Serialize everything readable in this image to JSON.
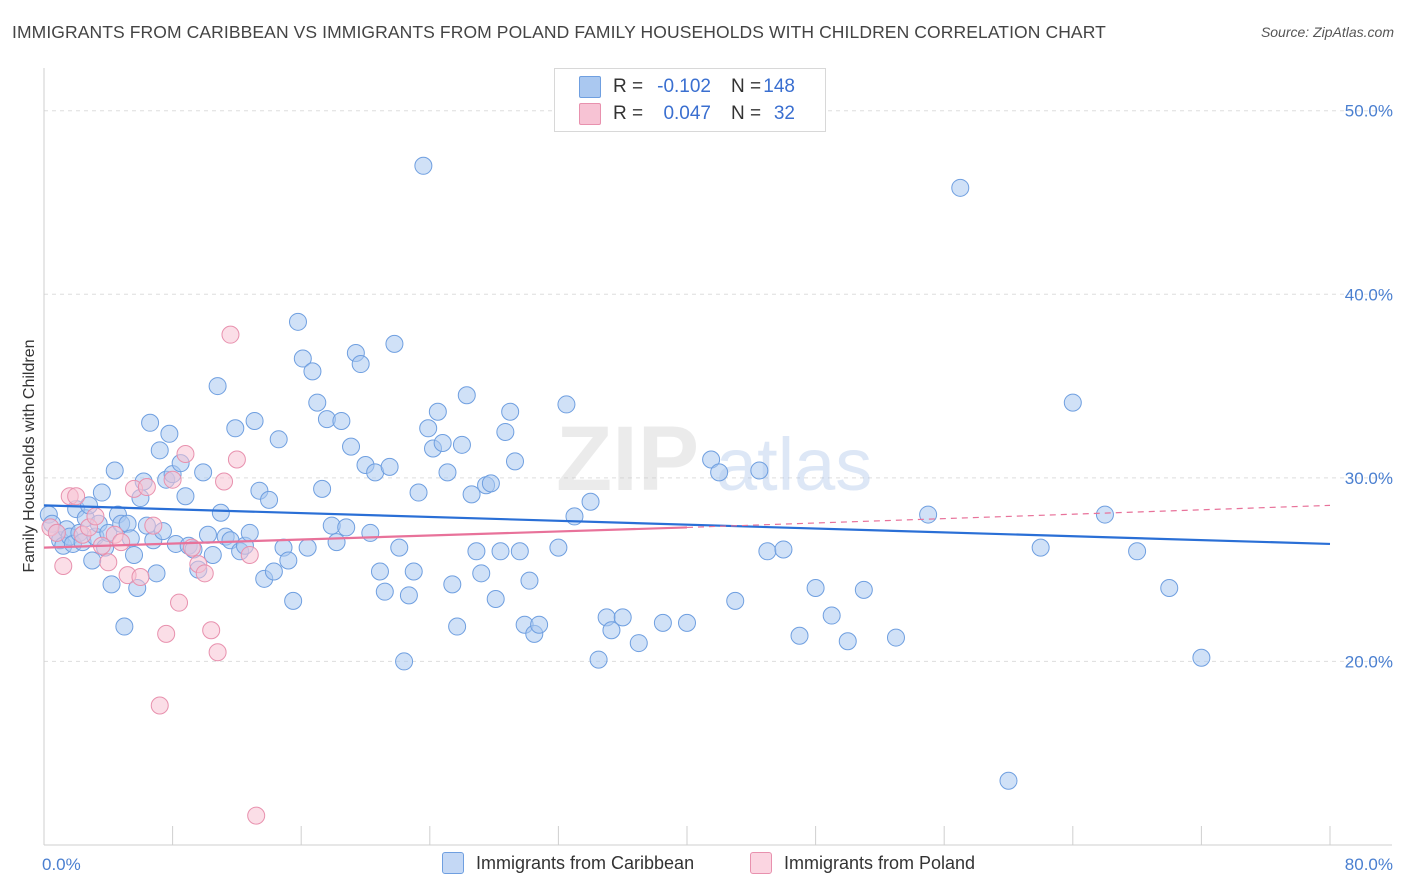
{
  "header": {
    "title": "IMMIGRANTS FROM CARIBBEAN VS IMMIGRANTS FROM POLAND FAMILY HOUSEHOLDS WITH CHILDREN CORRELATION CHART",
    "source": "Source: ZipAtlas.com"
  },
  "watermark": {
    "zip": "ZIP",
    "atlas": "atlas"
  },
  "legend": {
    "rows": [
      {
        "r_label": "R =",
        "r_value": "-0.102",
        "n_label": "N =",
        "n_value": "148"
      },
      {
        "r_label": "R =",
        "r_value": "0.047",
        "n_label": "N =",
        "n_value": "32"
      }
    ]
  },
  "colors": {
    "caribbean_fill": "#aac8f0",
    "caribbean_stroke": "#6f9fe0",
    "caribbean_line": "#2a6fd6",
    "poland_fill": "#f7c3d4",
    "poland_stroke": "#e891ae",
    "poland_line": "#e8729a",
    "tick_text": "#4a7fd0",
    "grid": "#dddddd"
  },
  "chart_data": {
    "type": "scatter",
    "title": "IMMIGRANTS FROM CARIBBEAN VS IMMIGRANTS FROM POLAND FAMILY HOUSEHOLDS WITH CHILDREN CORRELATION CHART",
    "xlabel": "",
    "ylabel": "Family Households with Children",
    "xlim": [
      0,
      80
    ],
    "ylim": [
      10,
      52
    ],
    "x_tick_labels": [
      "0.0%",
      "80.0%"
    ],
    "y_ticks": [
      20,
      30,
      40,
      50
    ],
    "y_tick_labels": [
      "20.0%",
      "30.0%",
      "40.0%",
      "50.0%"
    ],
    "grid": true,
    "legend_position": "bottom",
    "series": [
      {
        "name": "Immigrants from Caribbean",
        "r": -0.102,
        "n": 148,
        "trend": {
          "x": [
            0,
            80
          ],
          "y": [
            28.5,
            26.4
          ]
        },
        "points": [
          [
            0.3,
            28.0
          ],
          [
            0.5,
            27.5
          ],
          [
            0.8,
            27.0
          ],
          [
            1.0,
            26.6
          ],
          [
            1.2,
            26.3
          ],
          [
            1.4,
            27.2
          ],
          [
            1.6,
            26.8
          ],
          [
            1.8,
            26.4
          ],
          [
            2.0,
            28.3
          ],
          [
            2.2,
            27.0
          ],
          [
            2.4,
            26.5
          ],
          [
            2.6,
            27.8
          ],
          [
            2.8,
            28.5
          ],
          [
            3.0,
            25.5
          ],
          [
            3.2,
            26.8
          ],
          [
            3.4,
            27.5
          ],
          [
            3.6,
            29.2
          ],
          [
            3.8,
            26.2
          ],
          [
            4.0,
            27.0
          ],
          [
            4.2,
            24.2
          ],
          [
            4.4,
            30.4
          ],
          [
            4.6,
            28.0
          ],
          [
            4.8,
            27.5
          ],
          [
            5.0,
            21.9
          ],
          [
            5.2,
            27.5
          ],
          [
            5.4,
            26.7
          ],
          [
            5.6,
            25.8
          ],
          [
            5.8,
            24.0
          ],
          [
            6.0,
            28.9
          ],
          [
            6.2,
            29.8
          ],
          [
            6.4,
            27.4
          ],
          [
            6.6,
            33.0
          ],
          [
            6.8,
            26.6
          ],
          [
            7.0,
            24.8
          ],
          [
            7.2,
            31.5
          ],
          [
            7.4,
            27.1
          ],
          [
            7.6,
            29.9
          ],
          [
            7.8,
            32.4
          ],
          [
            8.0,
            30.2
          ],
          [
            8.2,
            26.4
          ],
          [
            8.5,
            30.8
          ],
          [
            8.8,
            29.0
          ],
          [
            9.0,
            26.3
          ],
          [
            9.3,
            26.1
          ],
          [
            9.6,
            25.0
          ],
          [
            9.9,
            30.3
          ],
          [
            10.2,
            26.9
          ],
          [
            10.5,
            25.8
          ],
          [
            10.8,
            35.0
          ],
          [
            11.0,
            28.1
          ],
          [
            11.3,
            26.8
          ],
          [
            11.6,
            26.6
          ],
          [
            11.9,
            32.7
          ],
          [
            12.2,
            26.0
          ],
          [
            12.5,
            26.3
          ],
          [
            12.8,
            27.0
          ],
          [
            13.1,
            33.1
          ],
          [
            13.4,
            29.3
          ],
          [
            13.7,
            24.5
          ],
          [
            14.0,
            28.8
          ],
          [
            14.3,
            24.9
          ],
          [
            14.6,
            32.1
          ],
          [
            14.9,
            26.2
          ],
          [
            15.2,
            25.5
          ],
          [
            15.5,
            23.3
          ],
          [
            15.8,
            38.5
          ],
          [
            16.1,
            36.5
          ],
          [
            16.4,
            26.2
          ],
          [
            16.7,
            35.8
          ],
          [
            17.0,
            34.1
          ],
          [
            17.3,
            29.4
          ],
          [
            17.6,
            33.2
          ],
          [
            17.9,
            27.4
          ],
          [
            18.2,
            26.5
          ],
          [
            18.5,
            33.1
          ],
          [
            18.8,
            27.3
          ],
          [
            19.1,
            31.7
          ],
          [
            19.4,
            36.8
          ],
          [
            19.7,
            36.2
          ],
          [
            20.0,
            30.7
          ],
          [
            20.3,
            27.0
          ],
          [
            20.6,
            30.3
          ],
          [
            20.9,
            24.9
          ],
          [
            21.2,
            23.8
          ],
          [
            21.5,
            30.6
          ],
          [
            21.8,
            37.3
          ],
          [
            22.1,
            26.2
          ],
          [
            22.4,
            20.0
          ],
          [
            22.7,
            23.6
          ],
          [
            23.0,
            24.9
          ],
          [
            23.3,
            29.2
          ],
          [
            23.6,
            47.0
          ],
          [
            23.9,
            32.7
          ],
          [
            24.2,
            31.6
          ],
          [
            24.5,
            33.6
          ],
          [
            24.8,
            31.9
          ],
          [
            25.1,
            30.3
          ],
          [
            25.4,
            24.2
          ],
          [
            25.7,
            21.9
          ],
          [
            26.0,
            31.8
          ],
          [
            26.3,
            34.5
          ],
          [
            26.6,
            29.1
          ],
          [
            26.9,
            26.0
          ],
          [
            27.2,
            24.8
          ],
          [
            27.5,
            29.6
          ],
          [
            27.8,
            29.7
          ],
          [
            28.1,
            23.4
          ],
          [
            28.4,
            26.0
          ],
          [
            28.7,
            32.5
          ],
          [
            29.0,
            33.6
          ],
          [
            29.3,
            30.9
          ],
          [
            29.6,
            26.0
          ],
          [
            29.9,
            22.0
          ],
          [
            30.2,
            24.4
          ],
          [
            30.5,
            21.5
          ],
          [
            30.8,
            22.0
          ],
          [
            32.0,
            26.2
          ],
          [
            32.5,
            34.0
          ],
          [
            33.0,
            27.9
          ],
          [
            34.0,
            28.7
          ],
          [
            34.5,
            20.1
          ],
          [
            35.0,
            22.4
          ],
          [
            35.3,
            21.7
          ],
          [
            36.0,
            22.4
          ],
          [
            37.0,
            21.0
          ],
          [
            38.5,
            22.1
          ],
          [
            40.0,
            22.1
          ],
          [
            41.5,
            31.0
          ],
          [
            42.0,
            30.3
          ],
          [
            43.0,
            23.3
          ],
          [
            45.0,
            26.0
          ],
          [
            47.0,
            21.4
          ],
          [
            48.0,
            24.0
          ],
          [
            50.0,
            21.1
          ],
          [
            57.0,
            45.8
          ],
          [
            44.5,
            30.4
          ],
          [
            46.0,
            26.1
          ],
          [
            49.0,
            22.5
          ],
          [
            51.0,
            23.9
          ],
          [
            53.0,
            21.3
          ],
          [
            55.0,
            28.0
          ],
          [
            60.0,
            13.5
          ],
          [
            62.0,
            26.2
          ],
          [
            64.0,
            34.1
          ],
          [
            66.0,
            28.0
          ],
          [
            68.0,
            26.0
          ],
          [
            70.0,
            24.0
          ],
          [
            72.0,
            20.2
          ]
        ]
      },
      {
        "name": "Immigrants from Poland",
        "r": 0.047,
        "n": 32,
        "trend": {
          "x": [
            0,
            40
          ],
          "y": [
            26.2,
            27.3
          ],
          "dashed_to": [
            80,
            28.5
          ]
        },
        "points": [
          [
            0.4,
            27.3
          ],
          [
            0.8,
            27.0
          ],
          [
            1.2,
            25.2
          ],
          [
            1.6,
            29.0
          ],
          [
            2.0,
            29.0
          ],
          [
            2.4,
            26.9
          ],
          [
            2.8,
            27.3
          ],
          [
            3.2,
            27.9
          ],
          [
            3.6,
            26.3
          ],
          [
            4.0,
            25.4
          ],
          [
            4.4,
            26.9
          ],
          [
            4.8,
            26.5
          ],
          [
            5.2,
            24.7
          ],
          [
            5.6,
            29.4
          ],
          [
            6.0,
            24.6
          ],
          [
            6.4,
            29.5
          ],
          [
            6.8,
            27.4
          ],
          [
            7.2,
            17.6
          ],
          [
            7.6,
            21.5
          ],
          [
            8.0,
            29.9
          ],
          [
            8.4,
            23.2
          ],
          [
            8.8,
            31.3
          ],
          [
            9.2,
            26.2
          ],
          [
            9.6,
            25.3
          ],
          [
            10.0,
            24.8
          ],
          [
            10.4,
            21.7
          ],
          [
            10.8,
            20.5
          ],
          [
            11.2,
            29.8
          ],
          [
            11.6,
            37.8
          ],
          [
            12.0,
            31.0
          ],
          [
            12.8,
            25.8
          ],
          [
            13.2,
            11.6
          ]
        ]
      }
    ]
  },
  "bottom_legend": {
    "items": [
      {
        "label": "Immigrants from Caribbean"
      },
      {
        "label": "Immigrants from Poland"
      }
    ]
  }
}
